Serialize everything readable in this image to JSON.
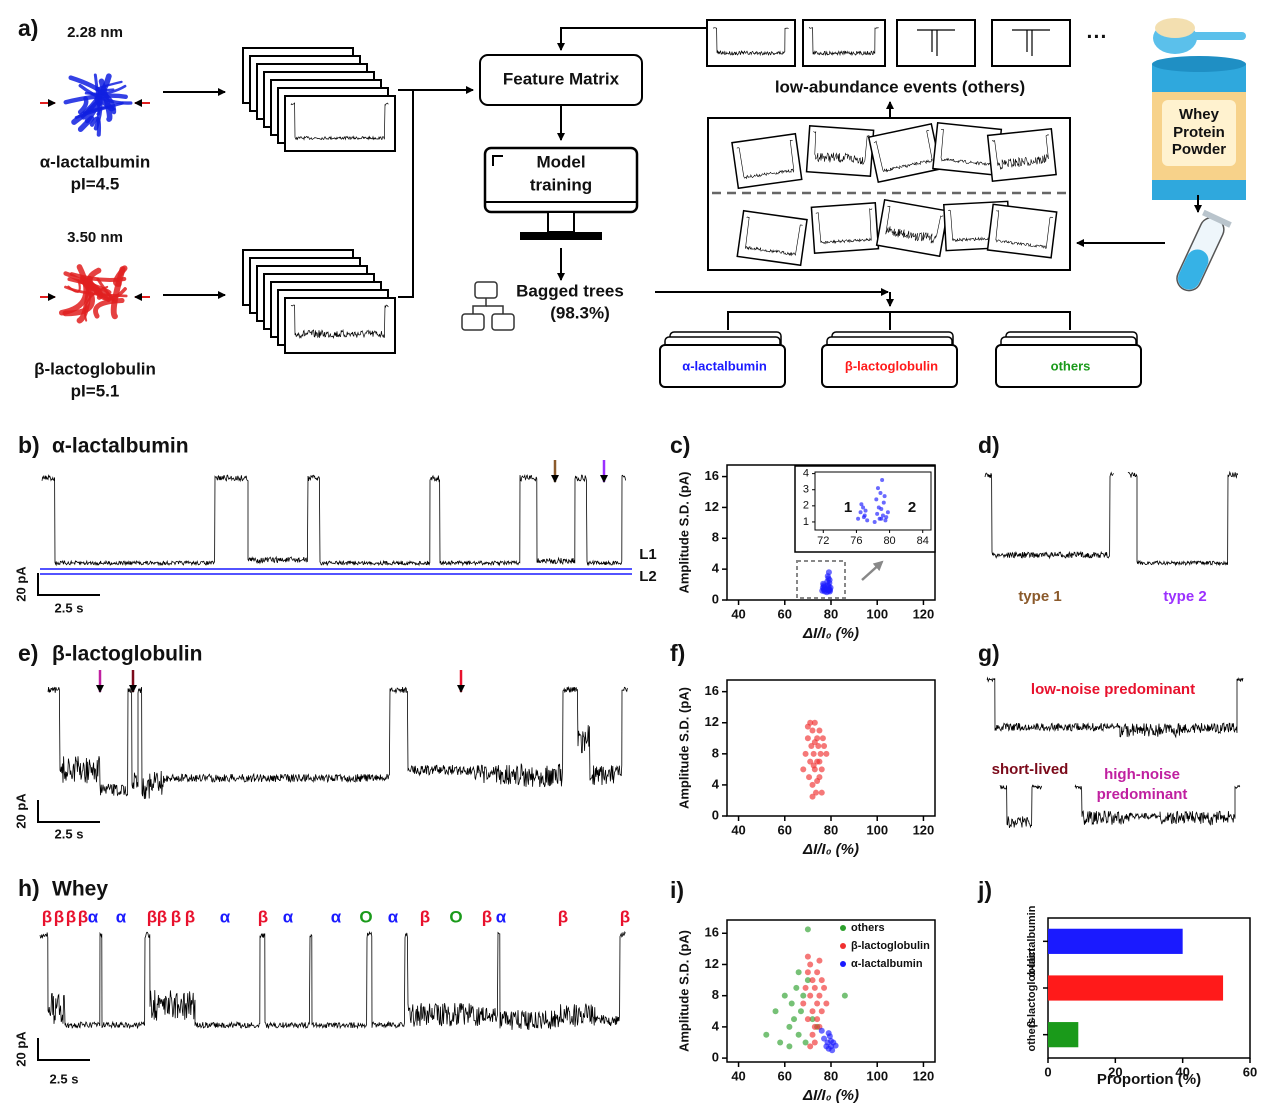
{
  "panel_a": {
    "label": "a)",
    "proteins": [
      {
        "size": "2.28 nm",
        "name": "α-lactalbumin",
        "pi": "pI=4.5"
      },
      {
        "size": "3.50 nm",
        "name": "β-lactoglobulin",
        "pi": "pI=5.1"
      }
    ],
    "feature_matrix": "Feature Matrix",
    "model_training": [
      "Model",
      "training"
    ],
    "classifier": "Bagged trees",
    "accuracy": "(98.3%)",
    "low_abundance": "low-abundance events (others)",
    "more": "···",
    "powder": [
      "Whey",
      "Protein",
      "Powder"
    ],
    "classes": [
      {
        "text": "α-lactalbumin",
        "color": "#1a1aff"
      },
      {
        "text": "β-lactoglobulin",
        "color": "#ff1a1a"
      },
      {
        "text": "others",
        "color": "#1a9a1a"
      }
    ]
  },
  "panel_b": {
    "label": "b)",
    "title": "α-lactalbumin",
    "levels": [
      "L1",
      "L2"
    ],
    "current_scale": "20 pA",
    "time_scale": "2.5 s"
  },
  "panel_d": {
    "label": "d)",
    "types": [
      {
        "text": "type 1",
        "color": "#8b5a2b"
      },
      {
        "text": "type 2",
        "color": "#9b30ff"
      }
    ]
  },
  "panel_e": {
    "label": "e)",
    "title": "β-lactoglobulin",
    "current_scale": "20 pA",
    "time_scale": "2.5 s"
  },
  "panel_g": {
    "label": "g)",
    "low_noise": "low-noise predominant",
    "short_lived": "short-lived",
    "high_noise": [
      "high-noise",
      "predominant"
    ]
  },
  "panel_h": {
    "label": "h)",
    "title": "Whey",
    "current_scale": "20 pA",
    "time_scale": "2.5 s",
    "events": [
      {
        "text": "β",
        "color": "#e8112d"
      },
      {
        "text": "β",
        "color": "#e8112d"
      },
      {
        "text": "β",
        "color": "#e8112d"
      },
      {
        "text": "β",
        "color": "#e8112d"
      },
      {
        "text": "α",
        "color": "#1a1aff"
      },
      {
        "text": "α",
        "color": "#1a1aff"
      },
      {
        "text": "β",
        "color": "#e8112d"
      },
      {
        "text": "β",
        "color": "#e8112d"
      },
      {
        "text": "β",
        "color": "#e8112d"
      },
      {
        "text": "β",
        "color": "#e8112d"
      },
      {
        "text": "α",
        "color": "#1a1aff"
      },
      {
        "text": "β",
        "color": "#e8112d"
      },
      {
        "text": "α",
        "color": "#1a1aff"
      },
      {
        "text": "α",
        "color": "#1a1aff"
      },
      {
        "text": "O",
        "color": "#1a9a1a"
      },
      {
        "text": "α",
        "color": "#1a1aff"
      },
      {
        "text": "β",
        "color": "#e8112d"
      },
      {
        "text": "O",
        "color": "#1a9a1a"
      },
      {
        "text": "β",
        "color": "#e8112d"
      },
      {
        "text": "α",
        "color": "#1a1aff"
      },
      {
        "text": "β",
        "color": "#e8112d"
      },
      {
        "text": "β",
        "color": "#e8112d"
      }
    ]
  },
  "chart_data": [
    {
      "label": "c)",
      "type": "scatter",
      "xlabel": "ΔI/I₀ (%)",
      "ylabel": "Amplitude S.D. (pA)",
      "xlim": [
        35,
        125
      ],
      "xticks": [
        40,
        60,
        80,
        100,
        120
      ],
      "ylim": [
        0,
        17.5
      ],
      "yticks": [
        0,
        4,
        8,
        12,
        16
      ],
      "color": "#1a1aff",
      "x": [
        76.2,
        76.5,
        76.8,
        77.0,
        77.3,
        76.6,
        76.9,
        77.1,
        78.2,
        78.5,
        78.8,
        79.0,
        79.2,
        79.5,
        79.8,
        78.4,
        78.9,
        79.3,
        79.6,
        78.6,
        79.1,
        79.4,
        78.7,
        79.0
      ],
      "values": [
        1.2,
        1.6,
        1.9,
        1.4,
        1.1,
        2.1,
        1.3,
        1.7,
        1.0,
        1.5,
        1.2,
        1.8,
        1.4,
        1.1,
        1.6,
        2.4,
        2.8,
        2.2,
        1.3,
        3.1,
        3.6,
        2.6,
        1.9,
        1.2
      ],
      "inset": {
        "xlim": [
          71,
          85
        ],
        "xticks": [
          72,
          76,
          80,
          84
        ],
        "ylim": [
          0.5,
          4.1
        ],
        "yticks": [
          1,
          2,
          3,
          4
        ],
        "cluster_labels": [
          "1",
          "2"
        ]
      }
    },
    {
      "label": "f)",
      "type": "scatter",
      "xlabel": "ΔI/I₀ (%)",
      "ylabel": "Amplitude S.D. (pA)",
      "xlim": [
        35,
        125
      ],
      "xticks": [
        40,
        60,
        80,
        100,
        120
      ],
      "ylim": [
        0,
        17.5
      ],
      "yticks": [
        0,
        4,
        8,
        12,
        16
      ],
      "color": "#f03030",
      "x": [
        68,
        69,
        70,
        70.5,
        71,
        71.5,
        72,
        72,
        72.5,
        73,
        73,
        73.5,
        74,
        74,
        74.5,
        75,
        75,
        75.5,
        76,
        76.5,
        77,
        78,
        72,
        71,
        73,
        74,
        70,
        75,
        72.5,
        76
      ],
      "values": [
        6,
        8,
        10,
        5,
        7,
        9,
        11,
        4,
        8,
        6,
        12,
        3,
        7,
        10,
        9,
        5,
        11,
        8,
        6,
        10,
        9,
        8,
        2.5,
        12,
        9.5,
        4.5,
        11.5,
        7,
        6.5,
        3
      ]
    },
    {
      "label": "i)",
      "type": "scatter",
      "xlabel": "ΔI/I₀ (%)",
      "ylabel": "Amplitude S.D. (pA)",
      "xlim": [
        35,
        125
      ],
      "xticks": [
        40,
        60,
        80,
        100,
        120
      ],
      "ylim": [
        -0.5,
        17.7
      ],
      "yticks": [
        0,
        4,
        8,
        12,
        16
      ],
      "series": [
        {
          "name": "others",
          "color": "#2ca02c",
          "x": [
            52,
            56,
            58,
            60,
            62,
            63,
            64,
            65,
            66,
            67,
            68,
            69,
            70,
            72,
            74,
            62,
            66,
            70,
            86
          ],
          "values": [
            3,
            6,
            2,
            8,
            4,
            7,
            5,
            9,
            3,
            6,
            8,
            2,
            10,
            5,
            4,
            1.5,
            11,
            16.5,
            8
          ]
        },
        {
          "name": "β-lactoglobulin",
          "color": "#f03030",
          "x": [
            68,
            69,
            70,
            70,
            71,
            71,
            72,
            72,
            73,
            73,
            74,
            74,
            75,
            75,
            76,
            76,
            72,
            73,
            74,
            70,
            71,
            75,
            77,
            78
          ],
          "values": [
            7,
            9,
            11,
            5,
            8,
            12,
            6,
            10,
            4,
            9,
            7,
            11,
            8,
            12.5,
            6,
            10,
            3,
            2,
            5,
            13,
            1.5,
            4,
            9,
            7
          ]
        },
        {
          "name": "α-lactalbumin",
          "color": "#1a1aff",
          "x": [
            76,
            77,
            78,
            78.5,
            79,
            79.5,
            80,
            80.5,
            81,
            79,
            80,
            82
          ],
          "values": [
            3.5,
            2.5,
            1.5,
            2,
            1.2,
            2.8,
            1.5,
            1,
            2,
            3.2,
            2.2,
            1.6
          ]
        }
      ]
    },
    {
      "label": "j)",
      "type": "hbar",
      "xlabel": "Proportion (%)",
      "categories": [
        "α-lactalbumin",
        "β-lactoglobulin",
        "others"
      ],
      "values": [
        40,
        52,
        9
      ],
      "colors": [
        "#1a1aff",
        "#ff1a1a",
        "#1a9a1a"
      ],
      "xlim": [
        0,
        60
      ],
      "xticks": [
        0,
        20,
        40,
        60
      ]
    }
  ]
}
